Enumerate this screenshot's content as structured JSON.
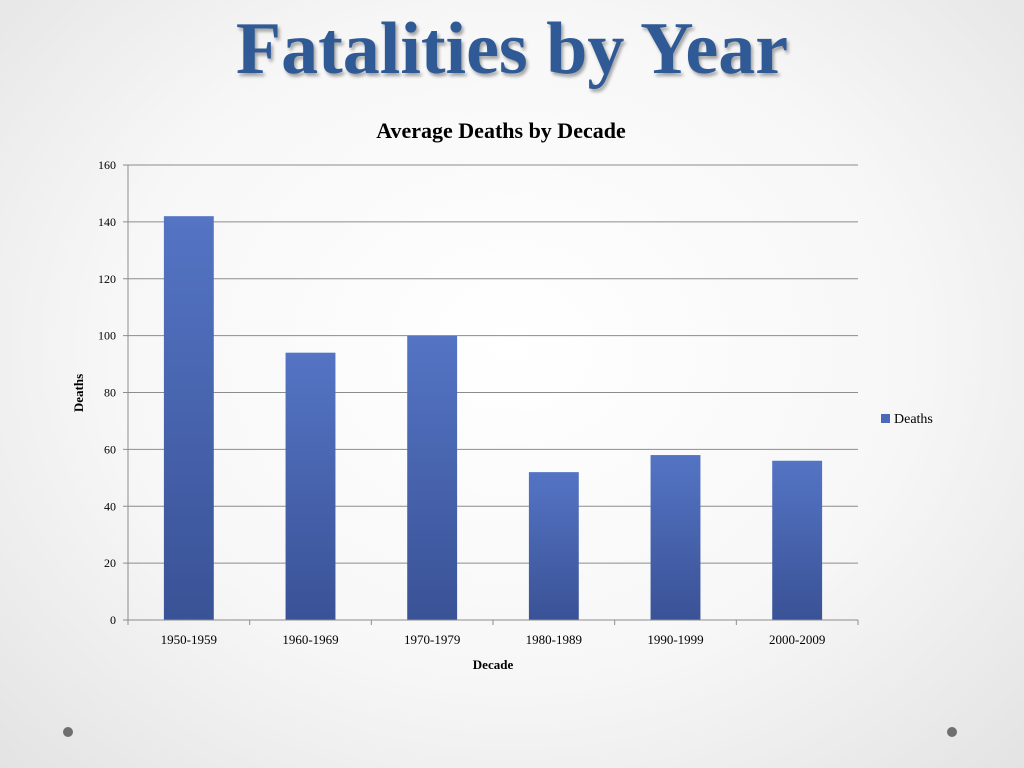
{
  "slide": {
    "title": "Fatalities by Year"
  },
  "chart_data": {
    "type": "bar",
    "title": "Average Deaths by Decade",
    "xlabel": "Decade",
    "ylabel": "Deaths",
    "categories": [
      "1950-1959",
      "1960-1969",
      "1970-1979",
      "1980-1989",
      "1990-1999",
      "2000-2009"
    ],
    "series": [
      {
        "name": "Deaths",
        "values": [
          142,
          94,
          100,
          52,
          58,
          56
        ]
      }
    ],
    "ylim": [
      0,
      160
    ],
    "yticks": [
      0,
      20,
      40,
      60,
      80,
      100,
      120,
      140,
      160
    ],
    "grid": true,
    "legend": "right",
    "colors": {
      "bar_top": "#5474c4",
      "bar_bottom": "#3a5296",
      "legend_swatch": "#4a69b8",
      "grid": "#8c8c8c"
    }
  }
}
